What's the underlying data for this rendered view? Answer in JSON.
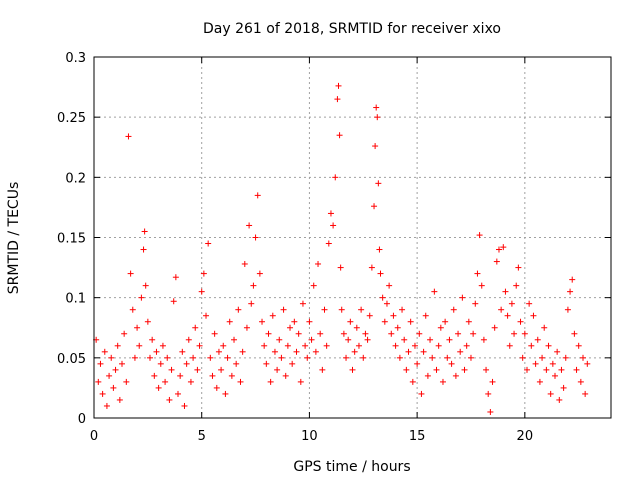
{
  "chart_data": {
    "type": "scatter",
    "title": "Day 261 of 2018, SRMTID for receiver xixo",
    "xlabel": "GPS time / hours",
    "ylabel": "SRMTID / TECUs",
    "xlim": [
      0,
      24
    ],
    "ylim": [
      0,
      0.3
    ],
    "xticks": [
      0,
      5,
      10,
      15,
      20
    ],
    "xtick_labels": [
      "0",
      "5",
      "10",
      "15",
      "20"
    ],
    "yticks": [
      0,
      0.05,
      0.1,
      0.15,
      0.2,
      0.25,
      0.3
    ],
    "ytick_labels": [
      "0",
      "0.05",
      "0.1",
      "0.15",
      "0.2",
      "0.25",
      "0.3"
    ],
    "grid": true,
    "marker": "+",
    "color": "#ff0000",
    "series": [
      {
        "name": "SRMTID",
        "points": [
          [
            0.1,
            0.065
          ],
          [
            0.2,
            0.03
          ],
          [
            0.3,
            0.045
          ],
          [
            0.4,
            0.02
          ],
          [
            0.5,
            0.055
          ],
          [
            0.6,
            0.01
          ],
          [
            0.7,
            0.035
          ],
          [
            0.8,
            0.05
          ],
          [
            0.9,
            0.025
          ],
          [
            1.0,
            0.04
          ],
          [
            1.1,
            0.06
          ],
          [
            1.2,
            0.015
          ],
          [
            1.3,
            0.045
          ],
          [
            1.4,
            0.07
          ],
          [
            1.5,
            0.03
          ],
          [
            1.6,
            0.234
          ],
          [
            1.7,
            0.12
          ],
          [
            1.8,
            0.09
          ],
          [
            1.9,
            0.05
          ],
          [
            2.0,
            0.075
          ],
          [
            2.1,
            0.06
          ],
          [
            2.2,
            0.1
          ],
          [
            2.3,
            0.14
          ],
          [
            2.35,
            0.155
          ],
          [
            2.4,
            0.11
          ],
          [
            2.5,
            0.08
          ],
          [
            2.6,
            0.05
          ],
          [
            2.7,
            0.065
          ],
          [
            2.8,
            0.035
          ],
          [
            2.9,
            0.055
          ],
          [
            3.0,
            0.025
          ],
          [
            3.1,
            0.045
          ],
          [
            3.2,
            0.06
          ],
          [
            3.3,
            0.03
          ],
          [
            3.4,
            0.05
          ],
          [
            3.5,
            0.015
          ],
          [
            3.6,
            0.04
          ],
          [
            3.7,
            0.097
          ],
          [
            3.8,
            0.117
          ],
          [
            3.9,
            0.02
          ],
          [
            4.0,
            0.035
          ],
          [
            4.1,
            0.055
          ],
          [
            4.2,
            0.01
          ],
          [
            4.3,
            0.045
          ],
          [
            4.4,
            0.065
          ],
          [
            4.5,
            0.03
          ],
          [
            4.6,
            0.05
          ],
          [
            4.7,
            0.075
          ],
          [
            4.8,
            0.04
          ],
          [
            4.9,
            0.06
          ],
          [
            5.0,
            0.105
          ],
          [
            5.1,
            0.12
          ],
          [
            5.2,
            0.085
          ],
          [
            5.3,
            0.145
          ],
          [
            5.4,
            0.05
          ],
          [
            5.5,
            0.035
          ],
          [
            5.6,
            0.07
          ],
          [
            5.7,
            0.025
          ],
          [
            5.8,
            0.055
          ],
          [
            5.9,
            0.04
          ],
          [
            6.0,
            0.06
          ],
          [
            6.1,
            0.02
          ],
          [
            6.2,
            0.05
          ],
          [
            6.3,
            0.08
          ],
          [
            6.4,
            0.035
          ],
          [
            6.5,
            0.065
          ],
          [
            6.6,
            0.045
          ],
          [
            6.7,
            0.09
          ],
          [
            6.8,
            0.03
          ],
          [
            6.9,
            0.055
          ],
          [
            7.0,
            0.128
          ],
          [
            7.1,
            0.075
          ],
          [
            7.2,
            0.16
          ],
          [
            7.3,
            0.095
          ],
          [
            7.4,
            0.11
          ],
          [
            7.5,
            0.15
          ],
          [
            7.6,
            0.185
          ],
          [
            7.7,
            0.12
          ],
          [
            7.8,
            0.08
          ],
          [
            7.9,
            0.06
          ],
          [
            8.0,
            0.045
          ],
          [
            8.1,
            0.07
          ],
          [
            8.2,
            0.03
          ],
          [
            8.3,
            0.085
          ],
          [
            8.4,
            0.055
          ],
          [
            8.5,
            0.04
          ],
          [
            8.6,
            0.065
          ],
          [
            8.7,
            0.05
          ],
          [
            8.8,
            0.09
          ],
          [
            8.9,
            0.035
          ],
          [
            9.0,
            0.06
          ],
          [
            9.1,
            0.075
          ],
          [
            9.2,
            0.045
          ],
          [
            9.3,
            0.08
          ],
          [
            9.4,
            0.055
          ],
          [
            9.5,
            0.07
          ],
          [
            9.6,
            0.03
          ],
          [
            9.7,
            0.095
          ],
          [
            9.8,
            0.06
          ],
          [
            9.9,
            0.05
          ],
          [
            10.0,
            0.08
          ],
          [
            10.1,
            0.065
          ],
          [
            10.2,
            0.11
          ],
          [
            10.3,
            0.055
          ],
          [
            10.4,
            0.128
          ],
          [
            10.5,
            0.07
          ],
          [
            10.6,
            0.04
          ],
          [
            10.7,
            0.09
          ],
          [
            10.8,
            0.06
          ],
          [
            10.9,
            0.145
          ],
          [
            11.0,
            0.17
          ],
          [
            11.1,
            0.16
          ],
          [
            11.2,
            0.2
          ],
          [
            11.3,
            0.265
          ],
          [
            11.35,
            0.276
          ],
          [
            11.4,
            0.235
          ],
          [
            11.45,
            0.125
          ],
          [
            11.5,
            0.09
          ],
          [
            11.6,
            0.07
          ],
          [
            11.7,
            0.05
          ],
          [
            11.8,
            0.065
          ],
          [
            11.9,
            0.08
          ],
          [
            12.0,
            0.04
          ],
          [
            12.1,
            0.055
          ],
          [
            12.2,
            0.075
          ],
          [
            12.3,
            0.06
          ],
          [
            12.4,
            0.09
          ],
          [
            12.5,
            0.05
          ],
          [
            12.6,
            0.07
          ],
          [
            12.7,
            0.065
          ],
          [
            12.8,
            0.085
          ],
          [
            12.9,
            0.125
          ],
          [
            13.0,
            0.176
          ],
          [
            13.05,
            0.226
          ],
          [
            13.1,
            0.258
          ],
          [
            13.15,
            0.25
          ],
          [
            13.2,
            0.195
          ],
          [
            13.25,
            0.14
          ],
          [
            13.3,
            0.12
          ],
          [
            13.4,
            0.1
          ],
          [
            13.5,
            0.08
          ],
          [
            13.6,
            0.095
          ],
          [
            13.7,
            0.11
          ],
          [
            13.8,
            0.07
          ],
          [
            13.9,
            0.085
          ],
          [
            14.0,
            0.06
          ],
          [
            14.1,
            0.075
          ],
          [
            14.2,
            0.05
          ],
          [
            14.3,
            0.09
          ],
          [
            14.4,
            0.065
          ],
          [
            14.5,
            0.04
          ],
          [
            14.6,
            0.055
          ],
          [
            14.7,
            0.08
          ],
          [
            14.8,
            0.03
          ],
          [
            14.9,
            0.06
          ],
          [
            15.0,
            0.045
          ],
          [
            15.1,
            0.07
          ],
          [
            15.2,
            0.02
          ],
          [
            15.3,
            0.055
          ],
          [
            15.4,
            0.085
          ],
          [
            15.5,
            0.035
          ],
          [
            15.6,
            0.065
          ],
          [
            15.7,
            0.05
          ],
          [
            15.8,
            0.105
          ],
          [
            15.9,
            0.04
          ],
          [
            16.0,
            0.06
          ],
          [
            16.1,
            0.075
          ],
          [
            16.2,
            0.03
          ],
          [
            16.3,
            0.08
          ],
          [
            16.4,
            0.05
          ],
          [
            16.5,
            0.065
          ],
          [
            16.6,
            0.045
          ],
          [
            16.7,
            0.09
          ],
          [
            16.8,
            0.035
          ],
          [
            16.9,
            0.07
          ],
          [
            17.0,
            0.055
          ],
          [
            17.1,
            0.1
          ],
          [
            17.2,
            0.04
          ],
          [
            17.3,
            0.06
          ],
          [
            17.4,
            0.08
          ],
          [
            17.5,
            0.05
          ],
          [
            17.6,
            0.07
          ],
          [
            17.7,
            0.095
          ],
          [
            17.8,
            0.12
          ],
          [
            17.9,
            0.152
          ],
          [
            18.0,
            0.11
          ],
          [
            18.1,
            0.065
          ],
          [
            18.2,
            0.04
          ],
          [
            18.3,
            0.02
          ],
          [
            18.4,
            0.005
          ],
          [
            18.5,
            0.03
          ],
          [
            18.6,
            0.075
          ],
          [
            18.7,
            0.13
          ],
          [
            18.8,
            0.14
          ],
          [
            18.9,
            0.09
          ],
          [
            19.0,
            0.142
          ],
          [
            19.1,
            0.105
          ],
          [
            19.2,
            0.085
          ],
          [
            19.3,
            0.06
          ],
          [
            19.4,
            0.095
          ],
          [
            19.5,
            0.07
          ],
          [
            19.6,
            0.11
          ],
          [
            19.7,
            0.125
          ],
          [
            19.8,
            0.08
          ],
          [
            19.9,
            0.05
          ],
          [
            20.0,
            0.07
          ],
          [
            20.1,
            0.04
          ],
          [
            20.2,
            0.095
          ],
          [
            20.3,
            0.06
          ],
          [
            20.4,
            0.085
          ],
          [
            20.5,
            0.045
          ],
          [
            20.6,
            0.065
          ],
          [
            20.7,
            0.03
          ],
          [
            20.8,
            0.05
          ],
          [
            20.9,
            0.075
          ],
          [
            21.0,
            0.04
          ],
          [
            21.1,
            0.06
          ],
          [
            21.2,
            0.02
          ],
          [
            21.3,
            0.045
          ],
          [
            21.4,
            0.035
          ],
          [
            21.5,
            0.055
          ],
          [
            21.6,
            0.015
          ],
          [
            21.7,
            0.04
          ],
          [
            21.8,
            0.025
          ],
          [
            21.9,
            0.05
          ],
          [
            22.0,
            0.09
          ],
          [
            22.1,
            0.105
          ],
          [
            22.2,
            0.115
          ],
          [
            22.3,
            0.07
          ],
          [
            22.4,
            0.04
          ],
          [
            22.5,
            0.06
          ],
          [
            22.6,
            0.03
          ],
          [
            22.7,
            0.05
          ],
          [
            22.8,
            0.02
          ],
          [
            22.9,
            0.045
          ]
        ]
      }
    ]
  }
}
